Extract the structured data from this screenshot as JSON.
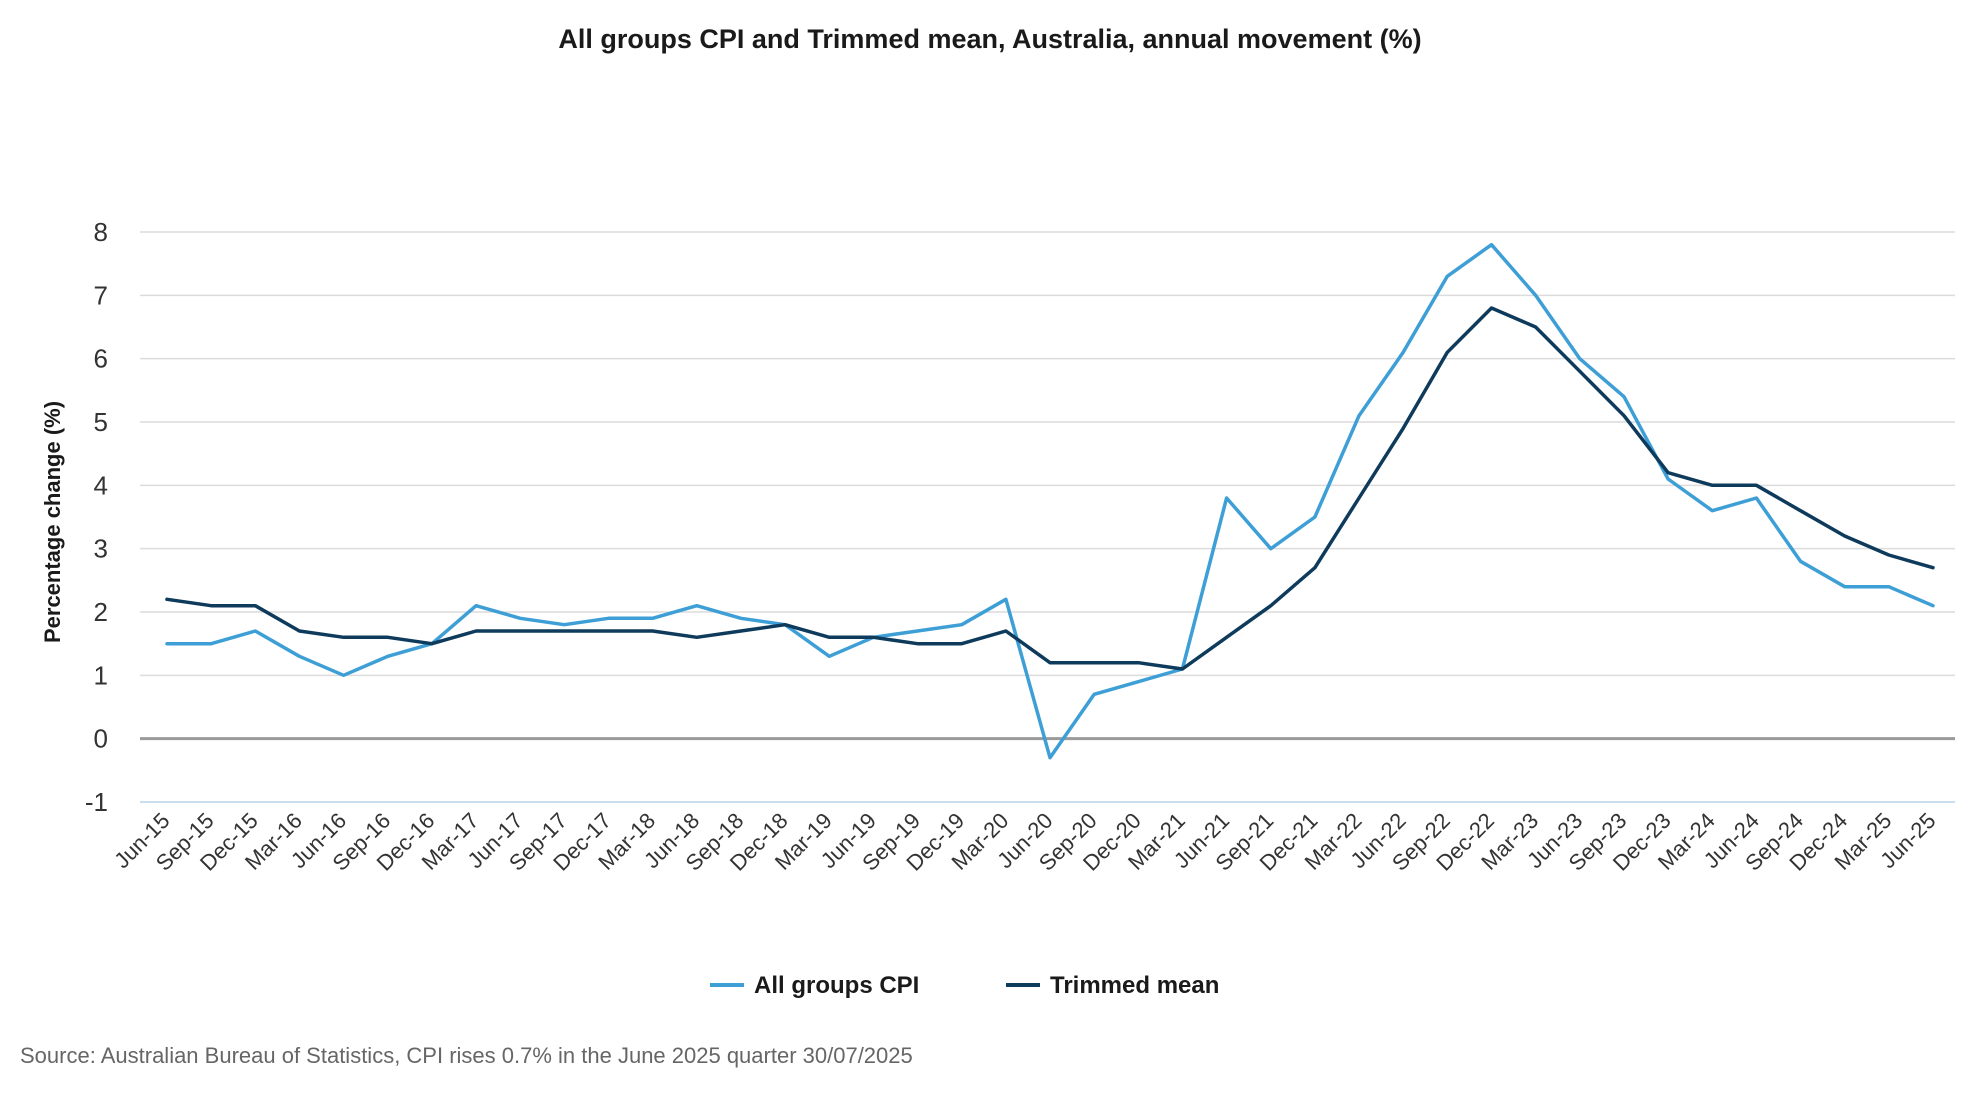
{
  "chart_data": {
    "type": "line",
    "title": "All groups CPI and Trimmed mean, Australia, annual movement (%)",
    "xlabel": "",
    "ylabel": "Percentage change (%)",
    "ylim": [
      -1,
      8
    ],
    "yticks": [
      -1,
      0,
      1,
      2,
      3,
      4,
      5,
      6,
      7,
      8
    ],
    "grid": true,
    "legend_position": "bottom",
    "categories": [
      "Jun-15",
      "Sep-15",
      "Dec-15",
      "Mar-16",
      "Jun-16",
      "Sep-16",
      "Dec-16",
      "Mar-17",
      "Jun-17",
      "Sep-17",
      "Dec-17",
      "Mar-18",
      "Jun-18",
      "Sep-18",
      "Dec-18",
      "Mar-19",
      "Jun-19",
      "Sep-19",
      "Dec-19",
      "Mar-20",
      "Jun-20",
      "Sep-20",
      "Dec-20",
      "Mar-21",
      "Jun-21",
      "Sep-21",
      "Dec-21",
      "Mar-22",
      "Jun-22",
      "Sep-22",
      "Dec-22",
      "Mar-23",
      "Jun-23",
      "Sep-23",
      "Dec-23",
      "Mar-24",
      "Jun-24",
      "Sep-24",
      "Dec-24",
      "Mar-25",
      "Jun-25"
    ],
    "series": [
      {
        "name": "All groups CPI",
        "color": "#3d9fd6",
        "values": [
          1.5,
          1.5,
          1.7,
          1.3,
          1.0,
          1.3,
          1.5,
          2.1,
          1.9,
          1.8,
          1.9,
          1.9,
          2.1,
          1.9,
          1.8,
          1.3,
          1.6,
          1.7,
          1.8,
          2.2,
          -0.3,
          0.7,
          0.9,
          1.1,
          3.8,
          3.0,
          3.5,
          5.1,
          6.1,
          7.3,
          7.8,
          7.0,
          6.0,
          5.4,
          4.1,
          3.6,
          3.8,
          2.8,
          2.4,
          2.4,
          2.1
        ]
      },
      {
        "name": "Trimmed mean",
        "color": "#0e3a5c",
        "values": [
          2.2,
          2.1,
          2.1,
          1.7,
          1.6,
          1.6,
          1.5,
          1.7,
          1.7,
          1.7,
          1.7,
          1.7,
          1.6,
          1.7,
          1.8,
          1.6,
          1.6,
          1.5,
          1.5,
          1.7,
          1.2,
          1.2,
          1.2,
          1.1,
          1.6,
          2.1,
          2.7,
          3.8,
          4.9,
          6.1,
          6.8,
          6.5,
          5.8,
          5.1,
          4.2,
          4.0,
          4.0,
          3.6,
          3.2,
          2.9,
          2.7
        ]
      }
    ]
  },
  "source": "Source: Australian Bureau of Statistics, CPI rises 0.7% in the June 2025 quarter 30/07/2025"
}
